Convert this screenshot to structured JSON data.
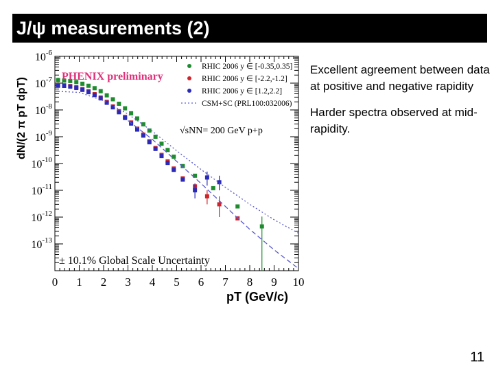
{
  "slide": {
    "title": "J/ψ measurements (2)",
    "bullets": [
      "Excellent agreement between data at positive and negative rapidity",
      "Harder spectra observed at mid-rapidity."
    ],
    "page_number": "11"
  },
  "chart_data": {
    "type": "scatter",
    "title": "",
    "xlabel": "pT (GeV/c)",
    "ylabel": "dN/(2 π pT dpT)",
    "xlim": [
      0,
      10
    ],
    "ylim": [
      1e-14,
      1e-06
    ],
    "yscale": "log",
    "x_ticks": [
      0,
      1,
      2,
      3,
      4,
      5,
      6,
      7,
      8,
      9,
      10
    ],
    "y_tick_labels": [
      "10-6",
      "10-7",
      "10-8",
      "10-9",
      "10-10",
      "10-11",
      "10-12",
      "10-13"
    ],
    "annotations": {
      "collaboration": "PHENIX preliminary",
      "energy": "√sNN= 200 GeV p+p",
      "scale_uncertainty": "± 10.1% Global Scale Uncertainty"
    },
    "colors": {
      "green": "#1e8c2e",
      "red": "#d0242a",
      "blue": "#2a2ab8",
      "theory": "#5a5ad0"
    },
    "series": [
      {
        "name": "RHIC 2006 y ∈ [-0.35,0.35]",
        "color": "#1e8c2e",
        "points": [
          {
            "x": 0.13,
            "y": 1.3e-07,
            "err_lo": 3e-08,
            "err_hi": 3e-08
          },
          {
            "x": 0.38,
            "y": 1.25e-07
          },
          {
            "x": 0.63,
            "y": 1.2e-07
          },
          {
            "x": 0.88,
            "y": 1.1e-07
          },
          {
            "x": 1.13,
            "y": 9.5e-08
          },
          {
            "x": 1.38,
            "y": 8e-08
          },
          {
            "x": 1.63,
            "y": 6.5e-08
          },
          {
            "x": 1.88,
            "y": 5e-08
          },
          {
            "x": 2.13,
            "y": 3.5e-08
          },
          {
            "x": 2.38,
            "y": 2.5e-08
          },
          {
            "x": 2.63,
            "y": 1.7e-08
          },
          {
            "x": 2.88,
            "y": 1.15e-08
          },
          {
            "x": 3.13,
            "y": 7.5e-09
          },
          {
            "x": 3.38,
            "y": 4.8e-09
          },
          {
            "x": 3.63,
            "y": 2.9e-09
          },
          {
            "x": 3.88,
            "y": 1.7e-09
          },
          {
            "x": 4.13,
            "y": 1e-09
          },
          {
            "x": 4.38,
            "y": 5.5e-10
          },
          {
            "x": 4.63,
            "y": 3.2e-10
          },
          {
            "x": 4.88,
            "y": 1.8e-10
          },
          {
            "x": 5.25,
            "y": 8e-11
          },
          {
            "x": 5.75,
            "y": 3.5e-11
          },
          {
            "x": 6.5,
            "y": 1.2e-11
          },
          {
            "x": 7.5,
            "y": 2.5e-12
          },
          {
            "x": 8.5,
            "y": 4.5e-13,
            "err_lo": 4.4e-13,
            "err_hi": 6e-13
          }
        ]
      },
      {
        "name": "RHIC 2006 y ∈ [-2.2,-1.2]",
        "color": "#d0242a",
        "points": [
          {
            "x": 0.13,
            "y": 8.5e-08
          },
          {
            "x": 0.38,
            "y": 8.3e-08
          },
          {
            "x": 0.63,
            "y": 7.8e-08
          },
          {
            "x": 0.88,
            "y": 7e-08
          },
          {
            "x": 1.13,
            "y": 6e-08
          },
          {
            "x": 1.38,
            "y": 5e-08
          },
          {
            "x": 1.63,
            "y": 3.9e-08
          },
          {
            "x": 1.88,
            "y": 2.9e-08
          },
          {
            "x": 2.13,
            "y": 2e-08
          },
          {
            "x": 2.38,
            "y": 1.35e-08
          },
          {
            "x": 2.63,
            "y": 9e-09
          },
          {
            "x": 2.88,
            "y": 5.5e-09
          },
          {
            "x": 3.13,
            "y": 3.4e-09
          },
          {
            "x": 3.38,
            "y": 2e-09
          },
          {
            "x": 3.63,
            "y": 1.2e-09
          },
          {
            "x": 3.88,
            "y": 6.8e-10
          },
          {
            "x": 4.13,
            "y": 3.8e-10
          },
          {
            "x": 4.38,
            "y": 2.1e-10
          },
          {
            "x": 4.63,
            "y": 1.2e-10
          },
          {
            "x": 4.88,
            "y": 6.5e-11
          },
          {
            "x": 5.25,
            "y": 2.8e-11
          },
          {
            "x": 5.75,
            "y": 1.4e-11
          },
          {
            "x": 6.25,
            "y": 6e-12,
            "err_lo": 3e-12,
            "err_hi": 4e-12
          },
          {
            "x": 6.75,
            "y": 3e-12,
            "err_lo": 2e-12,
            "err_hi": 3e-12
          },
          {
            "x": 7.5,
            "y": 9e-13
          }
        ]
      },
      {
        "name": "RHIC 2006 y ∈ [1.2,2.2]",
        "color": "#2a2ab8",
        "points": [
          {
            "x": 0.13,
            "y": 8e-08
          },
          {
            "x": 0.38,
            "y": 7.9e-08
          },
          {
            "x": 0.63,
            "y": 7.4e-08
          },
          {
            "x": 0.88,
            "y": 6.6e-08
          },
          {
            "x": 1.13,
            "y": 5.6e-08
          },
          {
            "x": 1.38,
            "y": 4.6e-08
          },
          {
            "x": 1.63,
            "y": 3.6e-08
          },
          {
            "x": 1.88,
            "y": 2.7e-08
          },
          {
            "x": 2.13,
            "y": 1.85e-08
          },
          {
            "x": 2.38,
            "y": 1.25e-08
          },
          {
            "x": 2.63,
            "y": 8.2e-09
          },
          {
            "x": 2.88,
            "y": 5e-09
          },
          {
            "x": 3.13,
            "y": 3.1e-09
          },
          {
            "x": 3.38,
            "y": 1.85e-09
          },
          {
            "x": 3.63,
            "y": 1.1e-09
          },
          {
            "x": 3.88,
            "y": 6.2e-10
          },
          {
            "x": 4.13,
            "y": 3.5e-10
          },
          {
            "x": 4.38,
            "y": 1.9e-10
          },
          {
            "x": 4.63,
            "y": 1.05e-10
          },
          {
            "x": 4.88,
            "y": 5.8e-11
          },
          {
            "x": 5.25,
            "y": 2.5e-11
          },
          {
            "x": 5.75,
            "y": 1e-11,
            "err_lo": 5e-12,
            "err_hi": 8e-12
          },
          {
            "x": 6.25,
            "y": 3e-11,
            "err_lo": 1.5e-11,
            "err_hi": 2e-11
          },
          {
            "x": 6.75,
            "y": 2e-11,
            "err_lo": 1e-11,
            "err_hi": 1.5e-11
          }
        ]
      },
      {
        "name": "CSM+SC (PRL100:032006)",
        "color": "#5a5ad0",
        "style": "dotted",
        "points": [
          {
            "x": 0,
            "y": 5e-08
          },
          {
            "x": 1,
            "y": 4.5e-08
          },
          {
            "x": 2,
            "y": 2.2e-08
          },
          {
            "x": 3,
            "y": 7e-09
          },
          {
            "x": 4,
            "y": 1.6e-09
          },
          {
            "x": 5,
            "y": 3e-10
          },
          {
            "x": 6,
            "y": 6e-11
          },
          {
            "x": 7,
            "y": 1.3e-11
          },
          {
            "x": 8,
            "y": 3e-12
          },
          {
            "x": 9,
            "y": 8e-13
          },
          {
            "x": 10,
            "y": 2.5e-13
          }
        ]
      },
      {
        "name": "",
        "color": "#5a5ad0",
        "style": "dashed",
        "points": [
          {
            "x": 3,
            "y": 4e-09
          },
          {
            "x": 4,
            "y": 8e-10
          },
          {
            "x": 5,
            "y": 1.2e-10
          },
          {
            "x": 6,
            "y": 1.8e-11
          },
          {
            "x": 7,
            "y": 2.5e-12
          },
          {
            "x": 8,
            "y": 3.5e-13
          },
          {
            "x": 9,
            "y": 6e-14
          },
          {
            "x": 10,
            "y": 1.2e-14
          }
        ]
      }
    ],
    "legend_placement": "top-right"
  }
}
